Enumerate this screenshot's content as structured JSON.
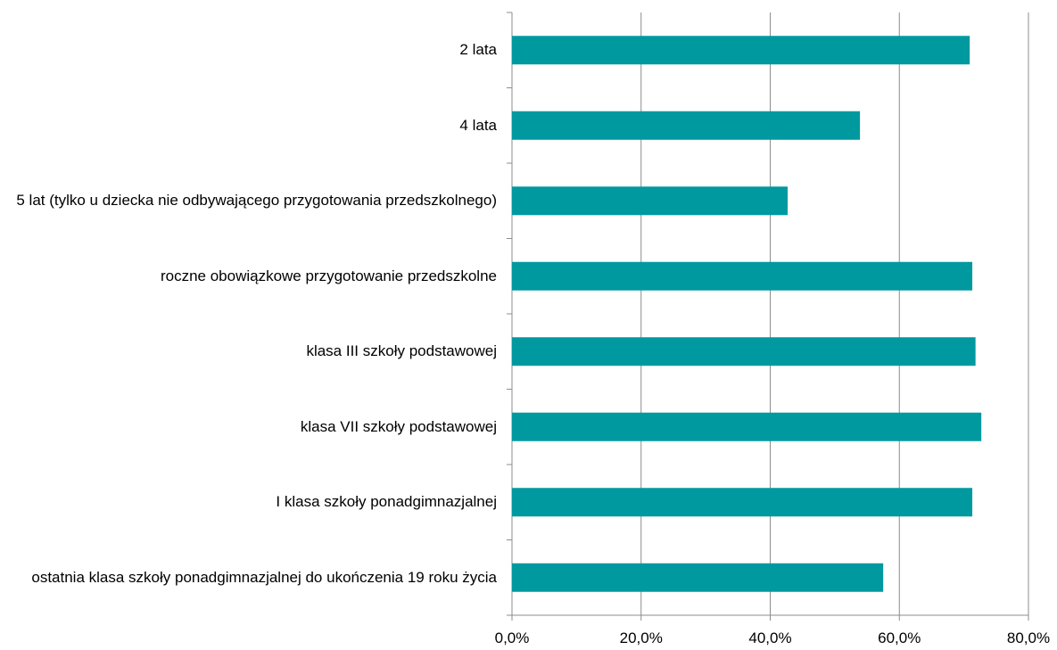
{
  "chart_data": {
    "type": "barh",
    "categories": [
      "2 lata",
      "4 lata",
      "5 lat (tylko u dziecka nie odbywającego przygotowania przedszkolnego)",
      "roczne obowiązkowe przygotowanie przedszkolne",
      "klasa III szkoły podstawowej",
      "klasa VII szkoły podstawowej",
      "I klasa szkoły  ponadgimnazjalnej",
      "ostatnia klasa szkoły  ponadgimnazjalnej do ukończenia 19 roku życia"
    ],
    "values": [
      70.9,
      53.9,
      42.7,
      71.3,
      71.8,
      72.7,
      71.3,
      57.5
    ],
    "color": "#00999f",
    "xlim": [
      0,
      80
    ],
    "xticks": [
      {
        "value": 0,
        "label": "0,0%"
      },
      {
        "value": 20,
        "label": "20,0%"
      },
      {
        "value": 40,
        "label": "40,0%"
      },
      {
        "value": 60,
        "label": "60,0%"
      },
      {
        "value": 80,
        "label": "80,0%"
      }
    ],
    "grid": true
  }
}
